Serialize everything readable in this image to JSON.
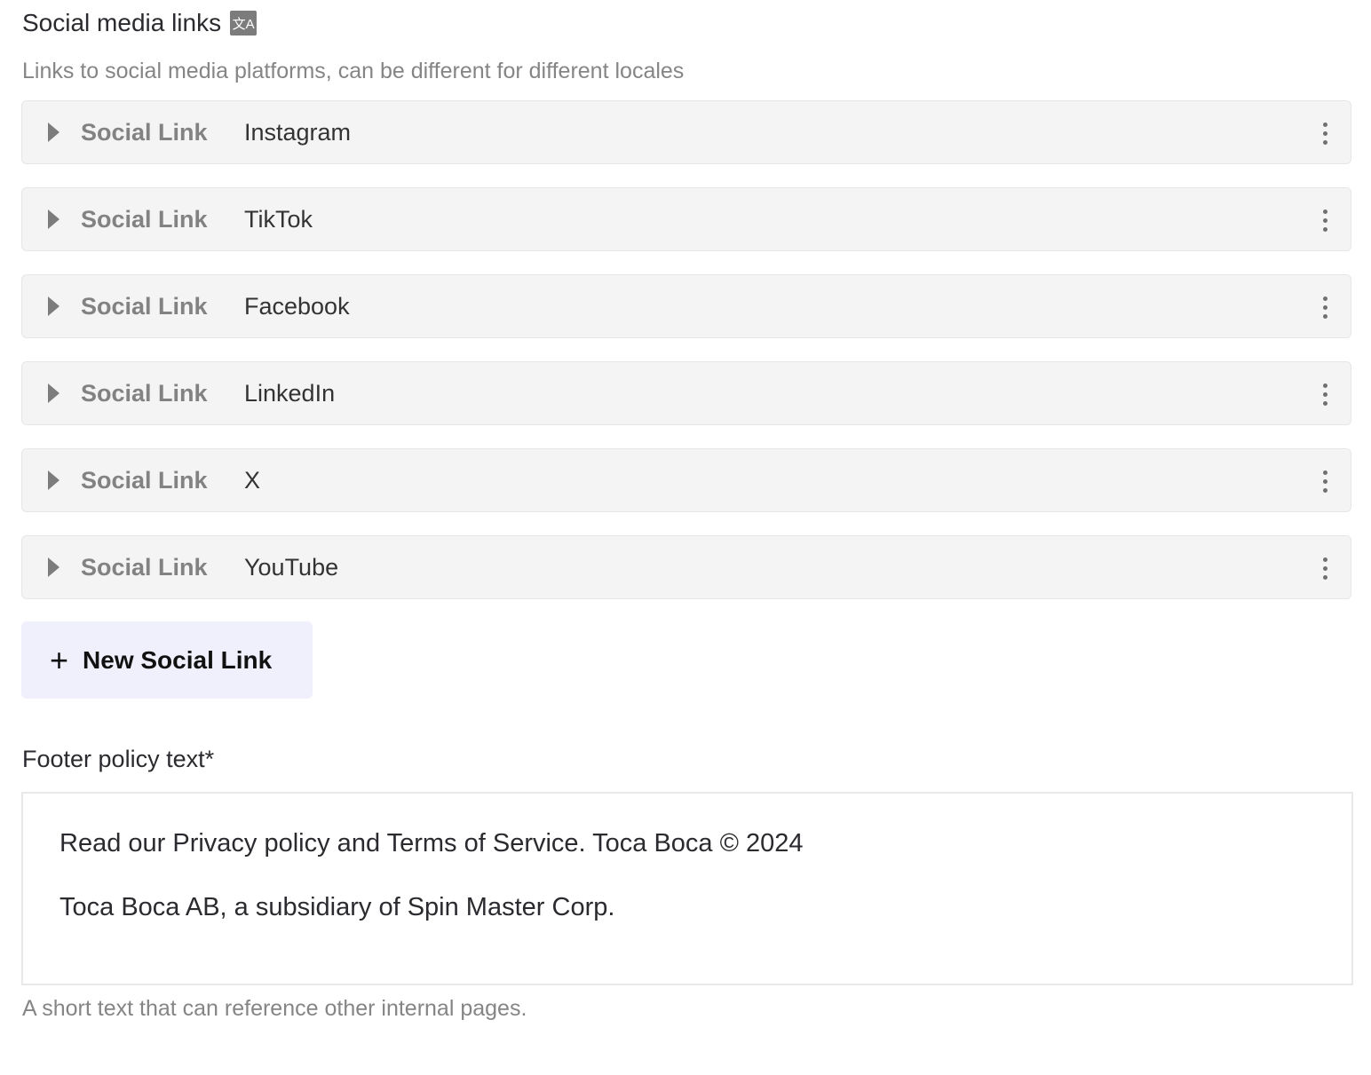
{
  "section": {
    "title": "Social media links",
    "translate_icon": "translate-icon",
    "description": "Links to social media platforms, can be different for different locales",
    "items": [
      {
        "type": "Social Link",
        "value": "Instagram"
      },
      {
        "type": "Social Link",
        "value": "TikTok"
      },
      {
        "type": "Social Link",
        "value": "Facebook"
      },
      {
        "type": "Social Link",
        "value": "LinkedIn"
      },
      {
        "type": "Social Link",
        "value": "X"
      },
      {
        "type": "Social Link",
        "value": "YouTube"
      }
    ],
    "add_label": "New Social Link",
    "add_icon": "+"
  },
  "footer": {
    "label": "Footer policy text*",
    "paragraphs": [
      "Read our Privacy policy and Terms of Service. Toca Boca © 2024",
      "Toca Boca AB, a subsidiary of Spin Master Corp."
    ],
    "help": "A short text that can reference other internal pages."
  },
  "colors": {
    "button_bg": "#f0f0fc",
    "row_bg": "#f4f4f4"
  }
}
